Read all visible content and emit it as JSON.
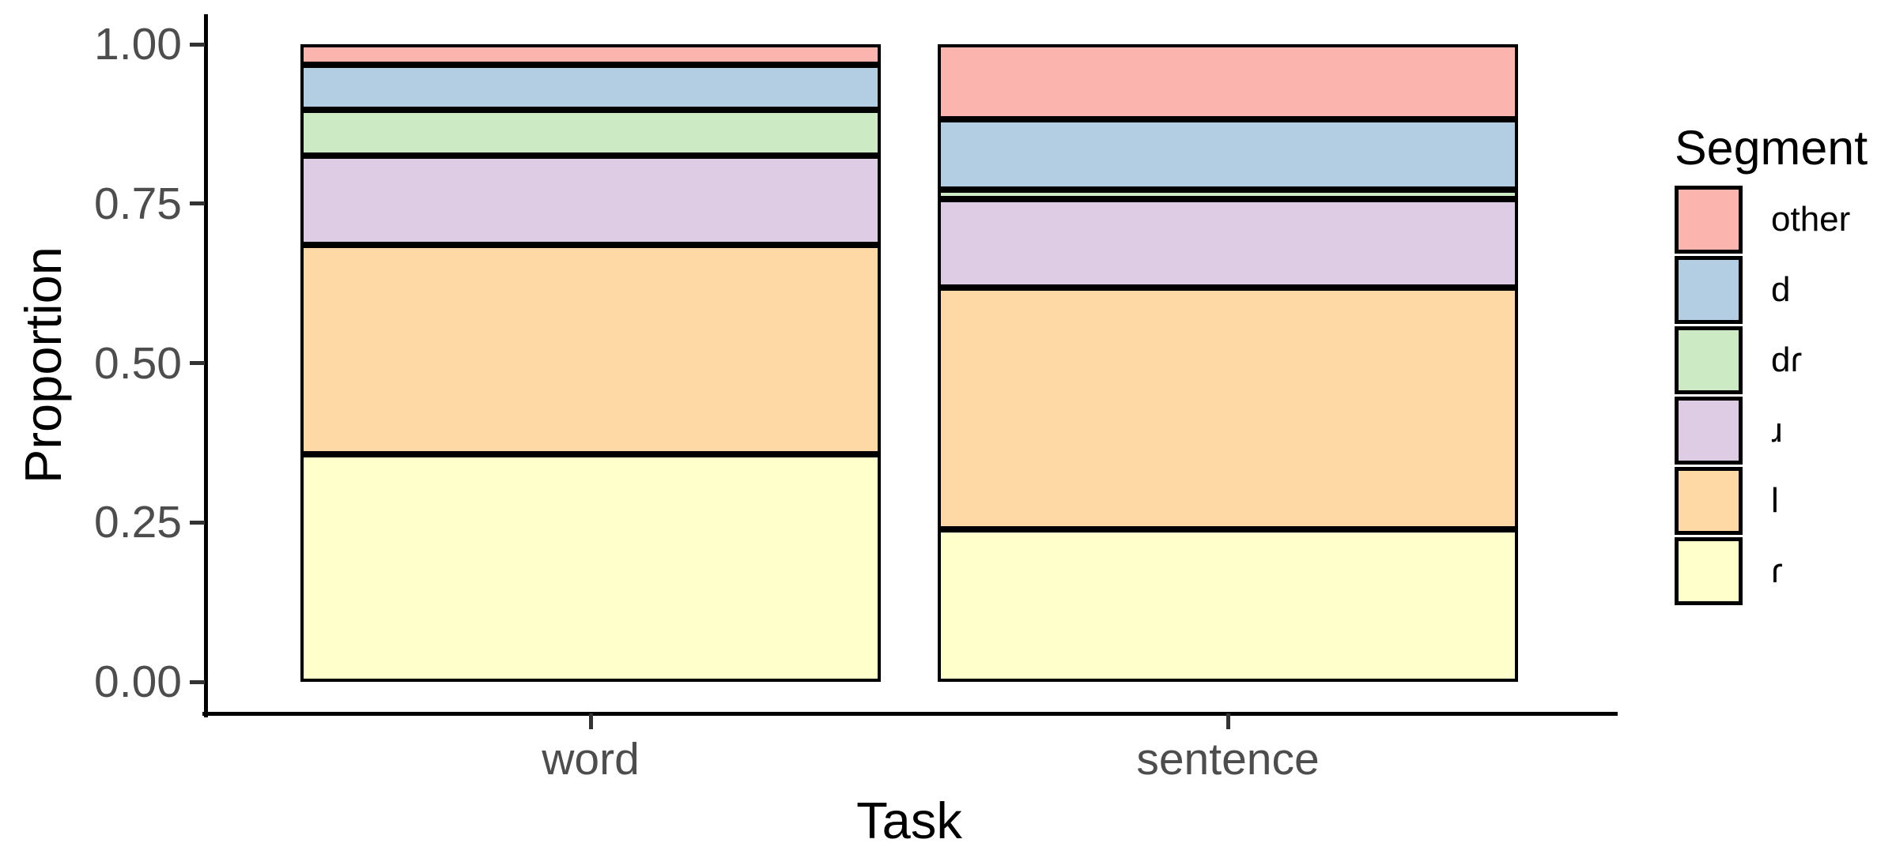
{
  "figure": {
    "background": "#FFFFFF"
  },
  "y_axis": {
    "title": "Proportion",
    "tick_labels": [
      "0.00",
      "0.25",
      "0.50",
      "0.75",
      "1.00"
    ]
  },
  "x_axis": {
    "title": "Task",
    "tick_labels": [
      "word",
      "sentence"
    ]
  },
  "legend": {
    "title": "Segment",
    "items": [
      {
        "label": "other",
        "color": "#FBB4AE"
      },
      {
        "label": "d",
        "color": "#B3CDE3"
      },
      {
        "label": "dɾ",
        "color": "#CCEBC5"
      },
      {
        "label": "ɹ",
        "color": "#DECBE4"
      },
      {
        "label": "l",
        "color": "#FED9A6"
      },
      {
        "label": "ɾ",
        "color": "#FFFFCC"
      }
    ]
  },
  "chart_data": {
    "type": "bar",
    "subtype": "stacked-proportion",
    "title": "",
    "xlabel": "Task",
    "ylabel": "Proportion",
    "categories": [
      "word",
      "sentence"
    ],
    "ylim": [
      0,
      1
    ],
    "y_ticks": [
      0,
      0.25,
      0.5,
      0.75,
      1.0
    ],
    "grid": "off",
    "legend_position": "right",
    "legend_title": "Segment",
    "bar_outline_color": "#000000",
    "stack_order_bottom_to_top": [
      "ɾ",
      "l",
      "ɹ",
      "dɾ",
      "d",
      "other"
    ],
    "series": [
      {
        "name": "other",
        "color": "#FBB4AE",
        "values": [
          0.032,
          0.118
        ]
      },
      {
        "name": "d",
        "color": "#B3CDE3",
        "values": [
          0.071,
          0.11
        ]
      },
      {
        "name": "dɾ",
        "color": "#CCEBC5",
        "values": [
          0.072,
          0.015
        ]
      },
      {
        "name": "ɹ",
        "color": "#DECBE4",
        "values": [
          0.14,
          0.139
        ]
      },
      {
        "name": "l",
        "color": "#FED9A6",
        "values": [
          0.328,
          0.379
        ]
      },
      {
        "name": "ɾ",
        "color": "#FFFFCC",
        "values": [
          0.357,
          0.239
        ]
      }
    ]
  }
}
